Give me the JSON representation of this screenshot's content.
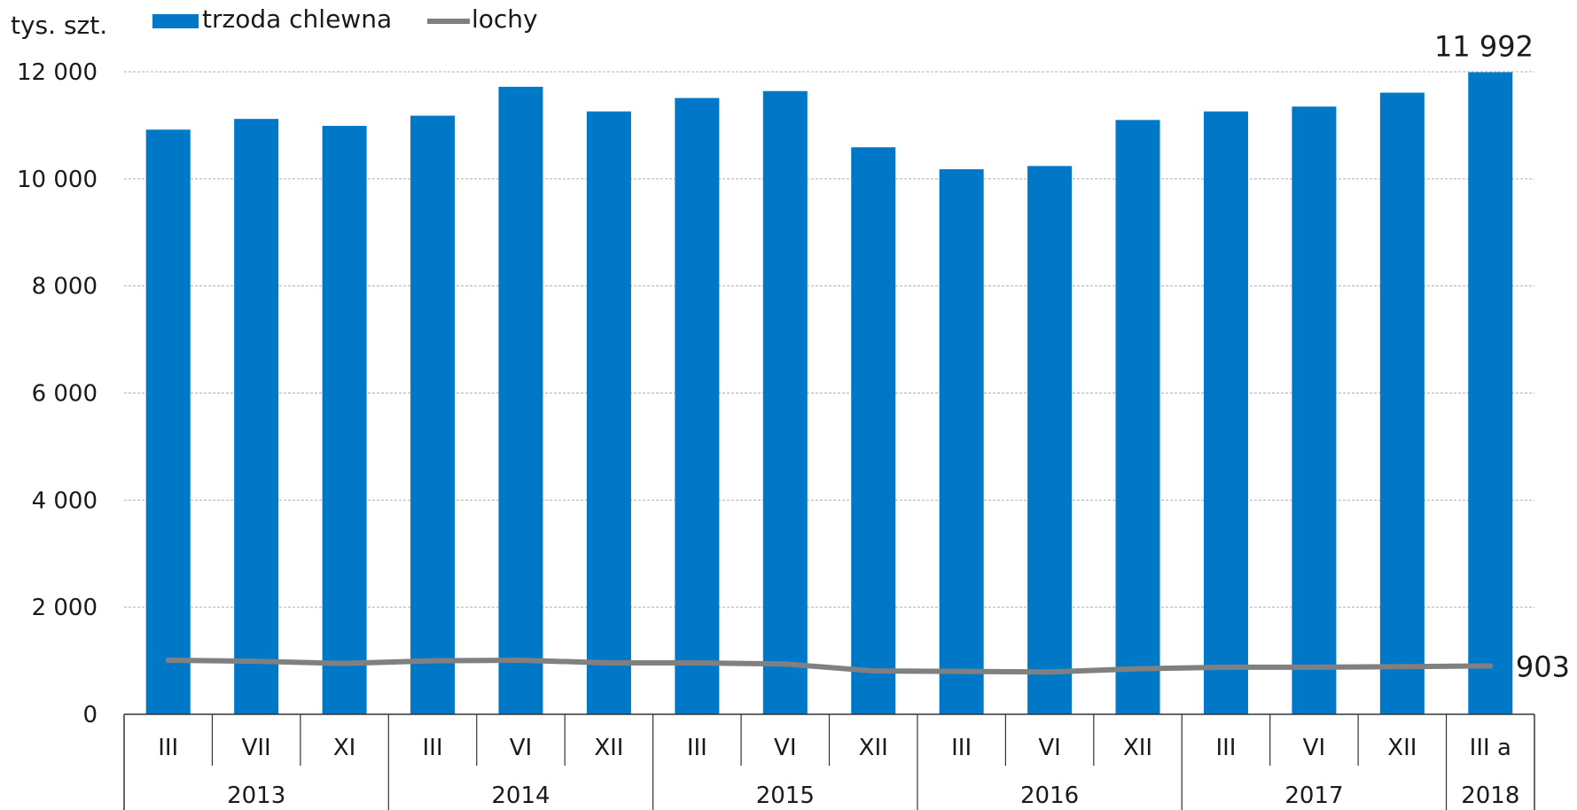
{
  "chart_data": {
    "type": "bar",
    "ylabel": "tys. szt.",
    "ylim": [
      0,
      12000
    ],
    "y_ticks": [
      "0",
      "2 000",
      "4 000",
      "6 000",
      "8 000",
      "10 000",
      "12 000"
    ],
    "grid": true,
    "legend_position": "top-left",
    "categories": [
      "III",
      "VII",
      "XI",
      "III",
      "VI",
      "XII",
      "III",
      "VI",
      "XII",
      "III",
      "VI",
      "XII",
      "III",
      "VI",
      "XII",
      "III a"
    ],
    "years": [
      {
        "label": "2013",
        "span": 3
      },
      {
        "label": "2014",
        "span": 3
      },
      {
        "label": "2015",
        "span": 3
      },
      {
        "label": "2016",
        "span": 3
      },
      {
        "label": "2017",
        "span": 3
      },
      {
        "label": "2018",
        "span": 1
      }
    ],
    "series": [
      {
        "name": "trzoda chlewna",
        "kind": "bar",
        "color": "#0078c8",
        "values": [
          10920,
          11120,
          10990,
          11180,
          11720,
          11260,
          11510,
          11640,
          10590,
          10180,
          10240,
          11100,
          11260,
          11350,
          11610,
          11992
        ]
      },
      {
        "name": "lochy",
        "kind": "line",
        "color": "#808080",
        "values": [
          1010,
          990,
          950,
          1000,
          1010,
          960,
          960,
          940,
          810,
          800,
          790,
          850,
          880,
          880,
          890,
          903
        ]
      }
    ],
    "data_labels": [
      {
        "series": 0,
        "index": 15,
        "text": "11 992"
      },
      {
        "series": 1,
        "index": 15,
        "text": "903"
      }
    ]
  }
}
